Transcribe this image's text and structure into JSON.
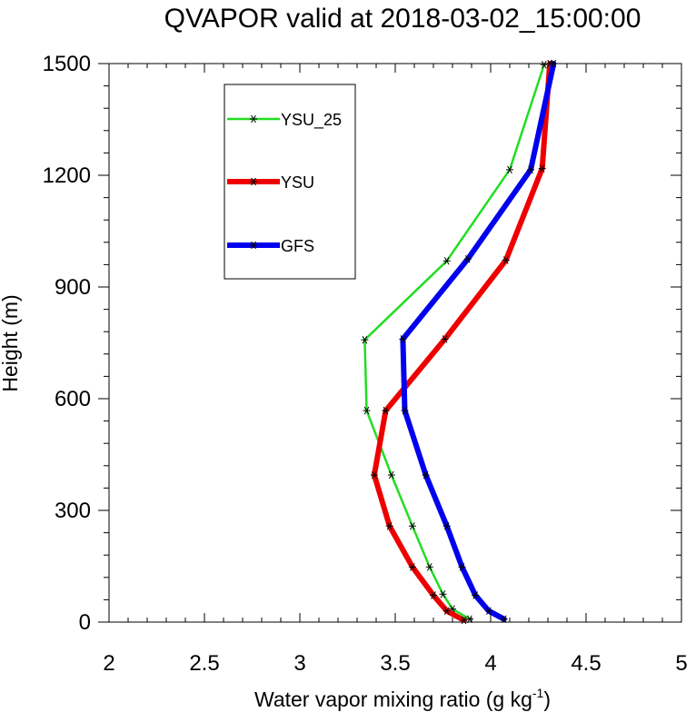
{
  "chart_data": {
    "type": "line",
    "title": "QVAPOR valid at 2018-03-02_15:00:00",
    "xlabel": "Water vapor mixing ratio (g kg",
    "xlabel_sup": "-1",
    "xlabel_tail": ")",
    "ylabel": "Height (m)",
    "xlim": [
      2,
      5
    ],
    "ylim": [
      0,
      1500
    ],
    "xticks": [
      "2",
      "2.5",
      "3",
      "3.5",
      "4",
      "4.5",
      "5"
    ],
    "yticks": [
      "0",
      "300",
      "600",
      "900",
      "1200",
      "1500"
    ],
    "grid": false,
    "legend_position": "top-left",
    "series": [
      {
        "name": "YSU_25",
        "color": "#22dd22",
        "marker": "asterisk",
        "points": [
          [
            3.89,
            8
          ],
          [
            3.8,
            35
          ],
          [
            3.75,
            75
          ],
          [
            3.68,
            148
          ],
          [
            3.59,
            258
          ],
          [
            3.48,
            395
          ],
          [
            3.35,
            568
          ],
          [
            3.34,
            758
          ],
          [
            3.77,
            970
          ],
          [
            4.1,
            1215
          ],
          [
            4.28,
            1497
          ]
        ]
      },
      {
        "name": "YSU",
        "color": "#ee0000",
        "marker": "asterisk",
        "points": [
          [
            3.86,
            5
          ],
          [
            3.77,
            30
          ],
          [
            3.7,
            72
          ],
          [
            3.59,
            148
          ],
          [
            3.47,
            258
          ],
          [
            3.39,
            395
          ],
          [
            3.45,
            568
          ],
          [
            3.76,
            760
          ],
          [
            4.08,
            972
          ],
          [
            4.27,
            1218
          ],
          [
            4.31,
            1500
          ]
        ]
      },
      {
        "name": "GFS",
        "color": "#0000ee",
        "marker": "asterisk",
        "points": [
          [
            4.07,
            8
          ],
          [
            3.99,
            30
          ],
          [
            3.92,
            72
          ],
          [
            3.85,
            148
          ],
          [
            3.77,
            258
          ],
          [
            3.66,
            395
          ],
          [
            3.55,
            568
          ],
          [
            3.54,
            760
          ],
          [
            3.88,
            975
          ],
          [
            4.21,
            1215
          ],
          [
            4.33,
            1500
          ]
        ]
      }
    ]
  }
}
